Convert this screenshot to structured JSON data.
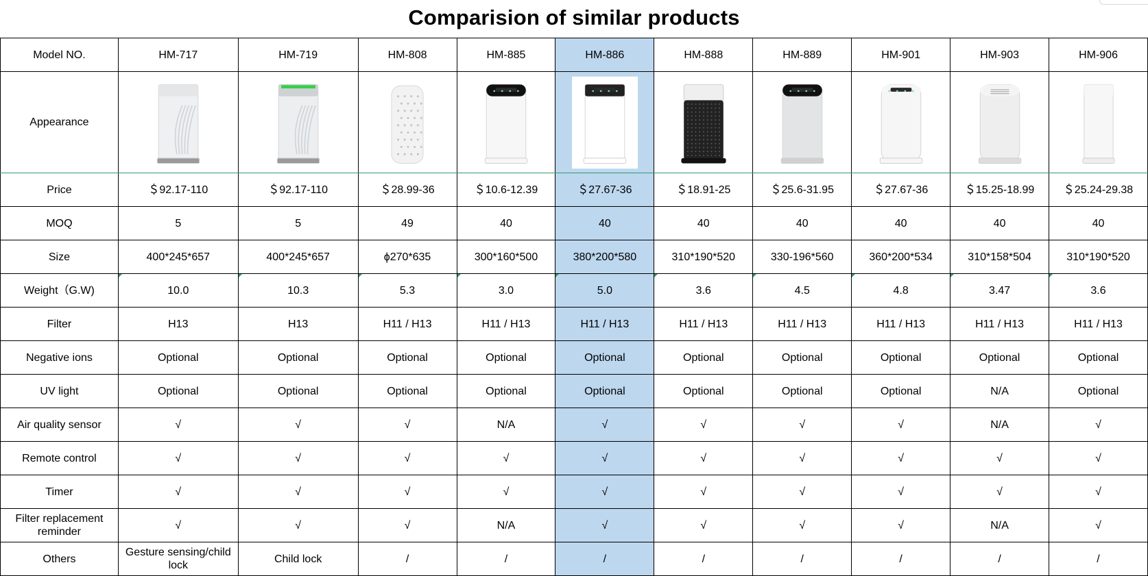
{
  "title": "Comparision of similar products",
  "highlight_color": "#bdd7ee",
  "rows": {
    "model_label": "Model NO.",
    "appearance_label": "Appearance",
    "price_label": "Price",
    "moq_label": "MOQ",
    "size_label": "Size",
    "weight_label": "Weight（G.W)",
    "filter_label": "Filter",
    "negative_ions_label": "Negative ions",
    "uv_light_label": "UV light",
    "air_quality_label": "Air quality sensor",
    "remote_label": "Remote control",
    "timer_label": "Timer",
    "filter_reminder_label": "Filter replacement reminder",
    "others_label": "Others"
  },
  "products": [
    {
      "model": "HM-717",
      "image": "air-purifier-hm717",
      "price": "＄92.17-110",
      "moq": "5",
      "size": "400*245*657",
      "weight": "10.0",
      "filter": "H13",
      "negative_ions": "Optional",
      "uv_light": "Optional",
      "air_quality": "√",
      "remote": "√",
      "timer": "√",
      "filter_reminder": "√",
      "others": "Gesture sensing/child lock"
    },
    {
      "model": "HM-719",
      "image": "air-purifier-hm719",
      "price": "＄92.17-110",
      "moq": "5",
      "size": "400*245*657",
      "weight": "10.3",
      "filter": "H13",
      "negative_ions": "Optional",
      "uv_light": "Optional",
      "air_quality": "√",
      "remote": "√",
      "timer": "√",
      "filter_reminder": "√",
      "others": "Child lock"
    },
    {
      "model": "HM-808",
      "image": "air-purifier-hm808",
      "price": "＄28.99-36",
      "moq": "49",
      "size": "ϕ270*635",
      "weight": "5.3",
      "filter": "H11 / H13",
      "negative_ions": "Optional",
      "uv_light": "Optional",
      "air_quality": "√",
      "remote": "√",
      "timer": "√",
      "filter_reminder": "√",
      "others": "/"
    },
    {
      "model": "HM-885",
      "image": "air-purifier-hm885",
      "price": "＄10.6-12.39",
      "moq": "40",
      "size": "300*160*500",
      "weight": "3.0",
      "filter": "H11 / H13",
      "negative_ions": "Optional",
      "uv_light": "Optional",
      "air_quality": "N/A",
      "remote": "√",
      "timer": "√",
      "filter_reminder": "N/A",
      "others": "/"
    },
    {
      "model": "HM-886",
      "image": "air-purifier-hm886",
      "price": "＄27.67-36",
      "moq": "40",
      "size": "380*200*580",
      "weight": "5.0",
      "filter": "H11 / H13",
      "negative_ions": "Optional",
      "uv_light": "Optional",
      "air_quality": "√",
      "remote": "√",
      "timer": "√",
      "filter_reminder": "√",
      "others": "/",
      "highlighted": true
    },
    {
      "model": "HM-888",
      "image": "air-purifier-hm888",
      "price": "＄18.91-25",
      "moq": "40",
      "size": "310*190*520",
      "weight": "3.6",
      "filter": "H11 / H13",
      "negative_ions": "Optional",
      "uv_light": "Optional",
      "air_quality": "√",
      "remote": "√",
      "timer": "√",
      "filter_reminder": "√",
      "others": "/"
    },
    {
      "model": "HM-889",
      "image": "air-purifier-hm889",
      "price": "＄25.6-31.95",
      "moq": "40",
      "size": "330-196*560",
      "weight": "4.5",
      "filter": "H11 / H13",
      "negative_ions": "Optional",
      "uv_light": "Optional",
      "air_quality": "√",
      "remote": "√",
      "timer": "√",
      "filter_reminder": "√",
      "others": "/"
    },
    {
      "model": "HM-901",
      "image": "air-purifier-hm901",
      "price": "＄27.67-36",
      "moq": "40",
      "size": "360*200*534",
      "weight": "4.8",
      "filter": "H11 / H13",
      "negative_ions": "Optional",
      "uv_light": "Optional",
      "air_quality": "√",
      "remote": "√",
      "timer": "√",
      "filter_reminder": "√",
      "others": "/"
    },
    {
      "model": "HM-903",
      "image": "air-purifier-hm903",
      "price": "＄15.25-18.99",
      "moq": "40",
      "size": "310*158*504",
      "weight": "3.47",
      "filter": "H11 / H13",
      "negative_ions": "Optional",
      "uv_light": "N/A",
      "air_quality": "N/A",
      "remote": "√",
      "timer": "√",
      "filter_reminder": "N/A",
      "others": "/"
    },
    {
      "model": "HM-906",
      "image": "air-purifier-hm906",
      "price": "＄25.24-29.38",
      "moq": "40",
      "size": "310*190*520",
      "weight": "3.6",
      "filter": "H11 / H13",
      "negative_ions": "Optional",
      "uv_light": "Optional",
      "air_quality": "√",
      "remote": "√",
      "timer": "√",
      "filter_reminder": "√",
      "others": "/"
    }
  ]
}
